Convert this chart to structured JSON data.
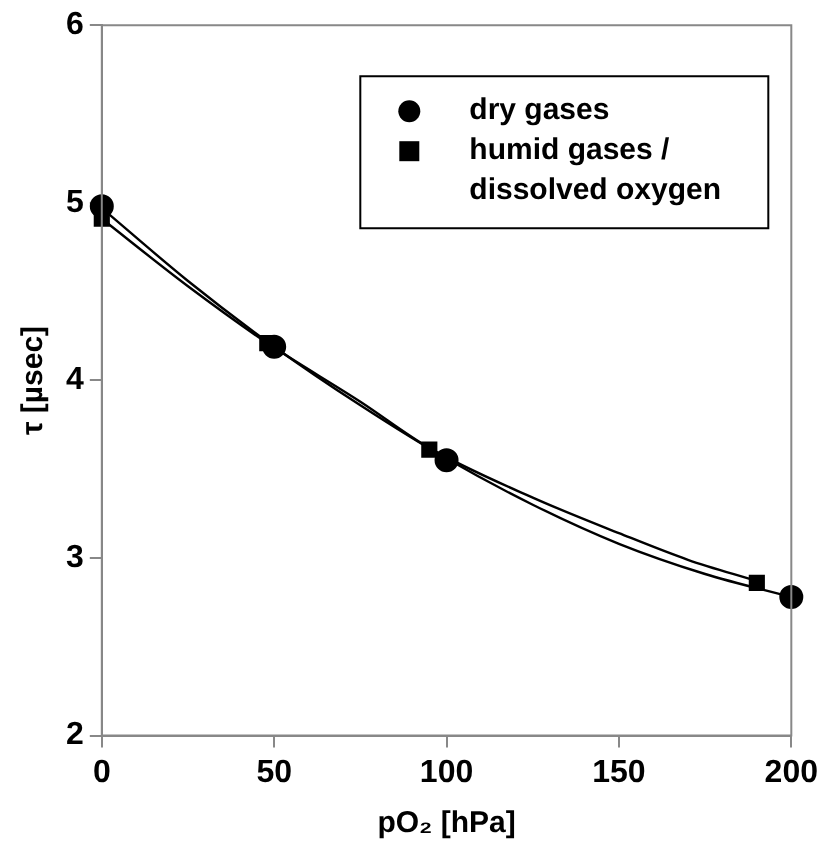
{
  "chart_data": {
    "type": "scatter",
    "xlabel": "pO₂ [hPa]",
    "ylabel": "τ [µsec]",
    "xlim": [
      0,
      200
    ],
    "xticks": [
      0,
      50,
      100,
      150,
      200
    ],
    "ylim": [
      2,
      6
    ],
    "yticks": [
      2,
      3,
      4,
      5,
      6
    ],
    "grid": false,
    "legend": "top right",
    "series": [
      {
        "name": "dry gases",
        "marker": "circle",
        "color": "#000000",
        "x": [
          0,
          50,
          100,
          200
        ],
        "values": [
          4.98,
          4.19,
          3.55,
          2.78
        ]
      },
      {
        "name": "humid gases / dissolved oxygen",
        "marker": "square",
        "color": "#000000",
        "x": [
          0,
          48,
          95,
          190
        ],
        "values": [
          4.91,
          4.21,
          3.61,
          2.86
        ]
      },
      {
        "type": "line",
        "marker": "none",
        "line_style": "solid",
        "color": "#000000",
        "x": [
          0,
          25,
          50,
          75,
          100,
          125,
          150,
          175,
          200
        ],
        "values": [
          4.97,
          4.56,
          4.19,
          3.86,
          3.56,
          3.3,
          3.08,
          2.91,
          2.78
        ]
      },
      {
        "type": "line",
        "marker": "none",
        "line_style": "solid",
        "color": "#000000",
        "x": [
          0,
          25,
          48,
          75,
          95,
          125,
          150,
          170,
          190
        ],
        "values": [
          4.91,
          4.53,
          4.21,
          3.88,
          3.62,
          3.34,
          3.14,
          2.99,
          2.87
        ]
      }
    ]
  }
}
